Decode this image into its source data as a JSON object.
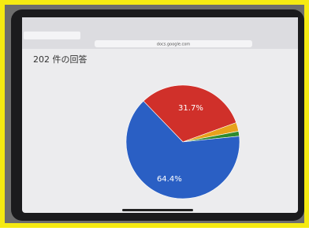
{
  "browser": {
    "url": "docs.google.com"
  },
  "chart_data": {
    "type": "pie",
    "title": "202 件の回答",
    "values": [
      31.7,
      2.5,
      1.4,
      64.4
    ],
    "value_labels": [
      "31.7%",
      null,
      null,
      "64.4%"
    ],
    "colors": [
      "#d0302a",
      "#e8a21c",
      "#2e8a2e",
      "#2a5fc4"
    ]
  }
}
